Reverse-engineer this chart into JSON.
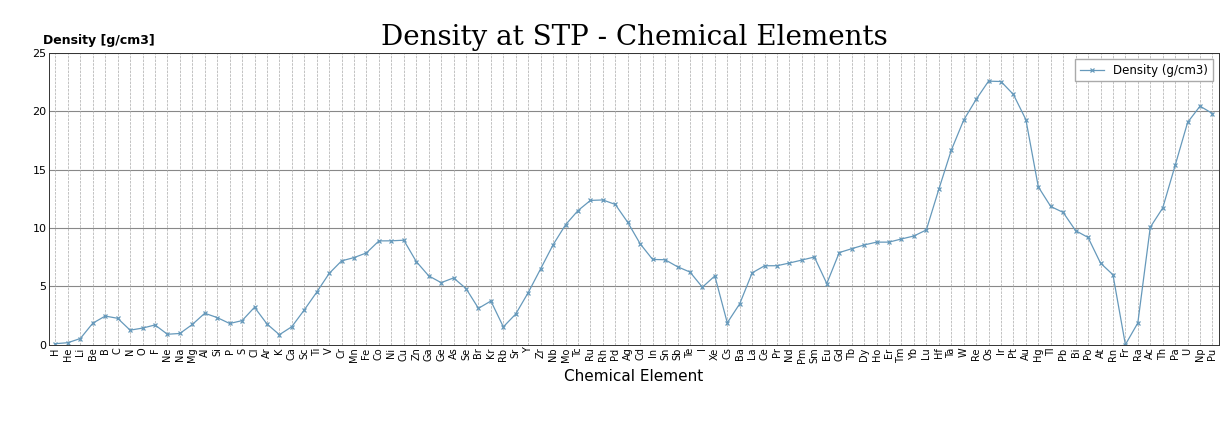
{
  "title": "Density at STP - Chemical Elements",
  "xlabel": "Chemical Element",
  "ylabel": "Density [g/cm3]",
  "legend_label": "Density (g/cm3)",
  "ylim": [
    0,
    25
  ],
  "yticks": [
    0,
    5,
    10,
    15,
    20,
    25
  ],
  "line_color": "#6699BB",
  "marker": "x",
  "title_fontsize": 20,
  "label_fontsize": 11,
  "tick_fontsize": 7.0,
  "ylabel_fontsize": 9,
  "elements": [
    "H",
    "He",
    "Li",
    "Be",
    "B",
    "C",
    "N",
    "O",
    "F",
    "Ne",
    "Na",
    "Mg",
    "Al",
    "Si",
    "P",
    "S",
    "Cl",
    "Ar",
    "K",
    "Ca",
    "Sc",
    "Ti",
    "V",
    "Cr",
    "Mn",
    "Fe",
    "Co",
    "Ni",
    "Cu",
    "Zn",
    "Ga",
    "Ge",
    "As",
    "Se",
    "Br",
    "Kr",
    "Rb",
    "Sr",
    "Y",
    "Zr",
    "Nb",
    "Mo",
    "Tc",
    "Ru",
    "Rh",
    "Pd",
    "Ag",
    "Cd",
    "In",
    "Sn",
    "Sb",
    "Te",
    "I",
    "Xe",
    "Cs",
    "Ba",
    "La",
    "Ce",
    "Pr",
    "Nd",
    "Pm",
    "Sm",
    "Eu",
    "Gd",
    "Tb",
    "Dy",
    "Ho",
    "Er",
    "Tm",
    "Yb",
    "Lu",
    "Hf",
    "Ta",
    "W",
    "Re",
    "Os",
    "Ir",
    "Pt",
    "Au",
    "Hg",
    "Tl",
    "Pb",
    "Bi",
    "Po",
    "At",
    "Rn",
    "Fr",
    "Ra",
    "Ac",
    "Th",
    "Pa",
    "U",
    "Np",
    "Pu"
  ],
  "densities": [
    0.0899,
    0.1785,
    0.535,
    1.848,
    2.46,
    2.267,
    1.251,
    1.429,
    1.696,
    0.9,
    0.968,
    1.738,
    2.7,
    2.33,
    1.823,
    2.067,
    3.214,
    1.784,
    0.862,
    1.55,
    2.985,
    4.507,
    6.11,
    7.19,
    7.47,
    7.874,
    8.9,
    8.908,
    8.96,
    7.134,
    5.907,
    5.323,
    5.727,
    4.819,
    3.122,
    3.749,
    1.532,
    2.64,
    4.472,
    6.511,
    8.57,
    10.28,
    11.5,
    12.37,
    12.41,
    12.023,
    10.49,
    8.65,
    7.31,
    7.287,
    6.685,
    6.232,
    4.933,
    5.9,
    1.879,
    3.51,
    6.162,
    6.77,
    6.773,
    7.007,
    7.26,
    7.52,
    5.244,
    7.9,
    8.23,
    8.551,
    8.795,
    8.795,
    9.066,
    9.321,
    9.84,
    13.31,
    16.654,
    19.25,
    21.02,
    22.59,
    22.56,
    21.45,
    19.3,
    13.534,
    11.85,
    11.34,
    9.78,
    9.196,
    7.0,
    6.0,
    0.01,
    1.87,
    10.07,
    11.72,
    15.37,
    19.05,
    20.45,
    19.816
  ]
}
